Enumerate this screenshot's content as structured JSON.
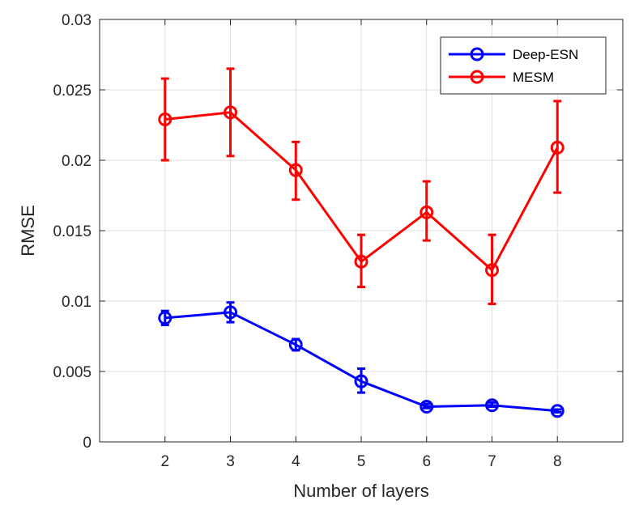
{
  "chart_data": {
    "type": "line",
    "xlabel": "Number of layers",
    "ylabel": "RMSE",
    "xlim": [
      1,
      9
    ],
    "ylim": [
      0,
      0.03
    ],
    "x_ticks": [
      2,
      3,
      4,
      5,
      6,
      7,
      8
    ],
    "x_tick_labels": [
      "2",
      "3",
      "4",
      "5",
      "6",
      "7",
      "8"
    ],
    "y_ticks": [
      0,
      0.005,
      0.01,
      0.015,
      0.02,
      0.025,
      0.03
    ],
    "y_tick_labels": [
      "0",
      "0.005",
      "0.01",
      "0.015",
      "0.02",
      "0.025",
      "0.03"
    ],
    "grid": true,
    "legend_position": "top-right",
    "x": [
      2,
      3,
      4,
      5,
      6,
      7,
      8
    ],
    "series": [
      {
        "name": "Deep-ESN",
        "color": "#0000ff",
        "marker": "circle",
        "values": [
          0.0088,
          0.0092,
          0.0069,
          0.0043,
          0.0025,
          0.0026,
          0.0022
        ],
        "error_lower": [
          0.0083,
          0.0085,
          0.0065,
          0.0035,
          0.0024,
          0.0025,
          0.0021
        ],
        "error_upper": [
          0.0093,
          0.0099,
          0.0073,
          0.0052,
          0.0027,
          0.0028,
          0.0023
        ]
      },
      {
        "name": "MESM",
        "color": "#ff0000",
        "marker": "circle",
        "values": [
          0.0229,
          0.0234,
          0.0193,
          0.0128,
          0.0163,
          0.0122,
          0.0209
        ],
        "error_lower": [
          0.02,
          0.0203,
          0.0172,
          0.011,
          0.0143,
          0.0098,
          0.0177
        ],
        "error_upper": [
          0.0258,
          0.0265,
          0.0213,
          0.0147,
          0.0185,
          0.0147,
          0.0242
        ]
      }
    ]
  }
}
